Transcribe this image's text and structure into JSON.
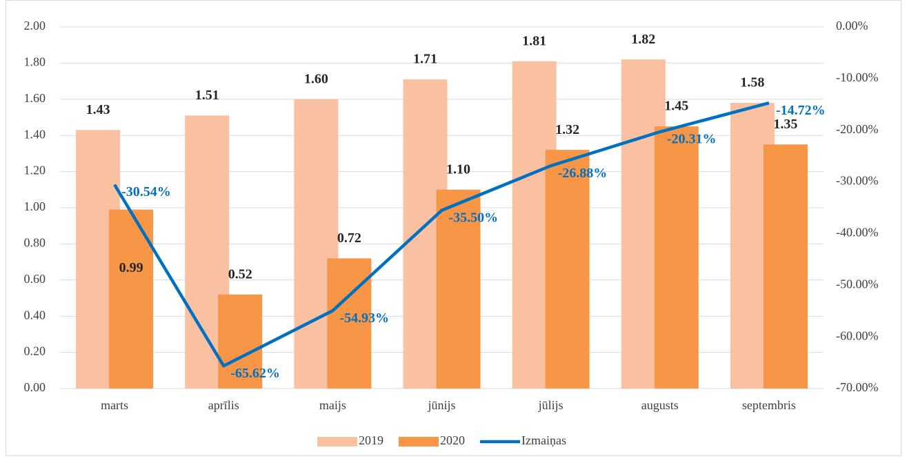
{
  "chart_data": {
    "type": "bar_line",
    "categories": [
      "marts",
      "aprīlis",
      "maijs",
      "jūnijs",
      "jūlijs",
      "augusts",
      "septembris"
    ],
    "series": [
      {
        "name": "2019",
        "color": "#f9c0a2",
        "values": [
          1.43,
          1.51,
          1.6,
          1.71,
          1.81,
          1.82,
          1.58
        ],
        "value_labels": [
          "1.43",
          "1.51",
          "1.60",
          "1.71",
          "1.81",
          "1.82",
          "1.58"
        ]
      },
      {
        "name": "2020",
        "color": "#f79646",
        "values": [
          0.99,
          0.52,
          0.72,
          1.1,
          1.32,
          1.45,
          1.35
        ],
        "value_labels": [
          "0.99",
          "0.52",
          "0.72",
          "1.10",
          "1.32",
          "1.45",
          "1.35"
        ]
      },
      {
        "name": "Izmaiņas",
        "color": "#0070c0",
        "axis": "y2",
        "values": [
          -30.54,
          -65.62,
          -54.93,
          -35.5,
          -26.88,
          -20.31,
          -14.72
        ],
        "value_labels": [
          "-30.54%",
          "-65.62%",
          "-54.93%",
          "-35.50%",
          "-26.88%",
          "-20.31%",
          "-14.72%"
        ]
      }
    ],
    "ylim": [
      0,
      2
    ],
    "yticks": [
      {
        "value": 0,
        "label": "0.00"
      },
      {
        "value": 0.2,
        "label": "0.20"
      },
      {
        "value": 0.4,
        "label": "0.40"
      },
      {
        "value": 0.6,
        "label": "0.60"
      },
      {
        "value": 0.8,
        "label": "0.80"
      },
      {
        "value": 1,
        "label": "1.00"
      },
      {
        "value": 1.2,
        "label": "1.20"
      },
      {
        "value": 1.4,
        "label": "1.40"
      },
      {
        "value": 1.6,
        "label": "1.60"
      },
      {
        "value": 1.8,
        "label": "1.80"
      },
      {
        "value": 2,
        "label": "2.00"
      }
    ],
    "y2lim": [
      -70,
      0
    ],
    "y2ticks": [
      {
        "value": -70,
        "label": "-70.00%"
      },
      {
        "value": -60,
        "label": "-60.00%"
      },
      {
        "value": -50,
        "label": "-50.00%"
      },
      {
        "value": -40,
        "label": "-40.00%"
      },
      {
        "value": -30,
        "label": "-30.00%"
      },
      {
        "value": -20,
        "label": "-20.00%"
      },
      {
        "value": -10,
        "label": "-10.00%"
      },
      {
        "value": 0,
        "label": "0.00%"
      }
    ],
    "grid": true,
    "legend": "bottom"
  }
}
